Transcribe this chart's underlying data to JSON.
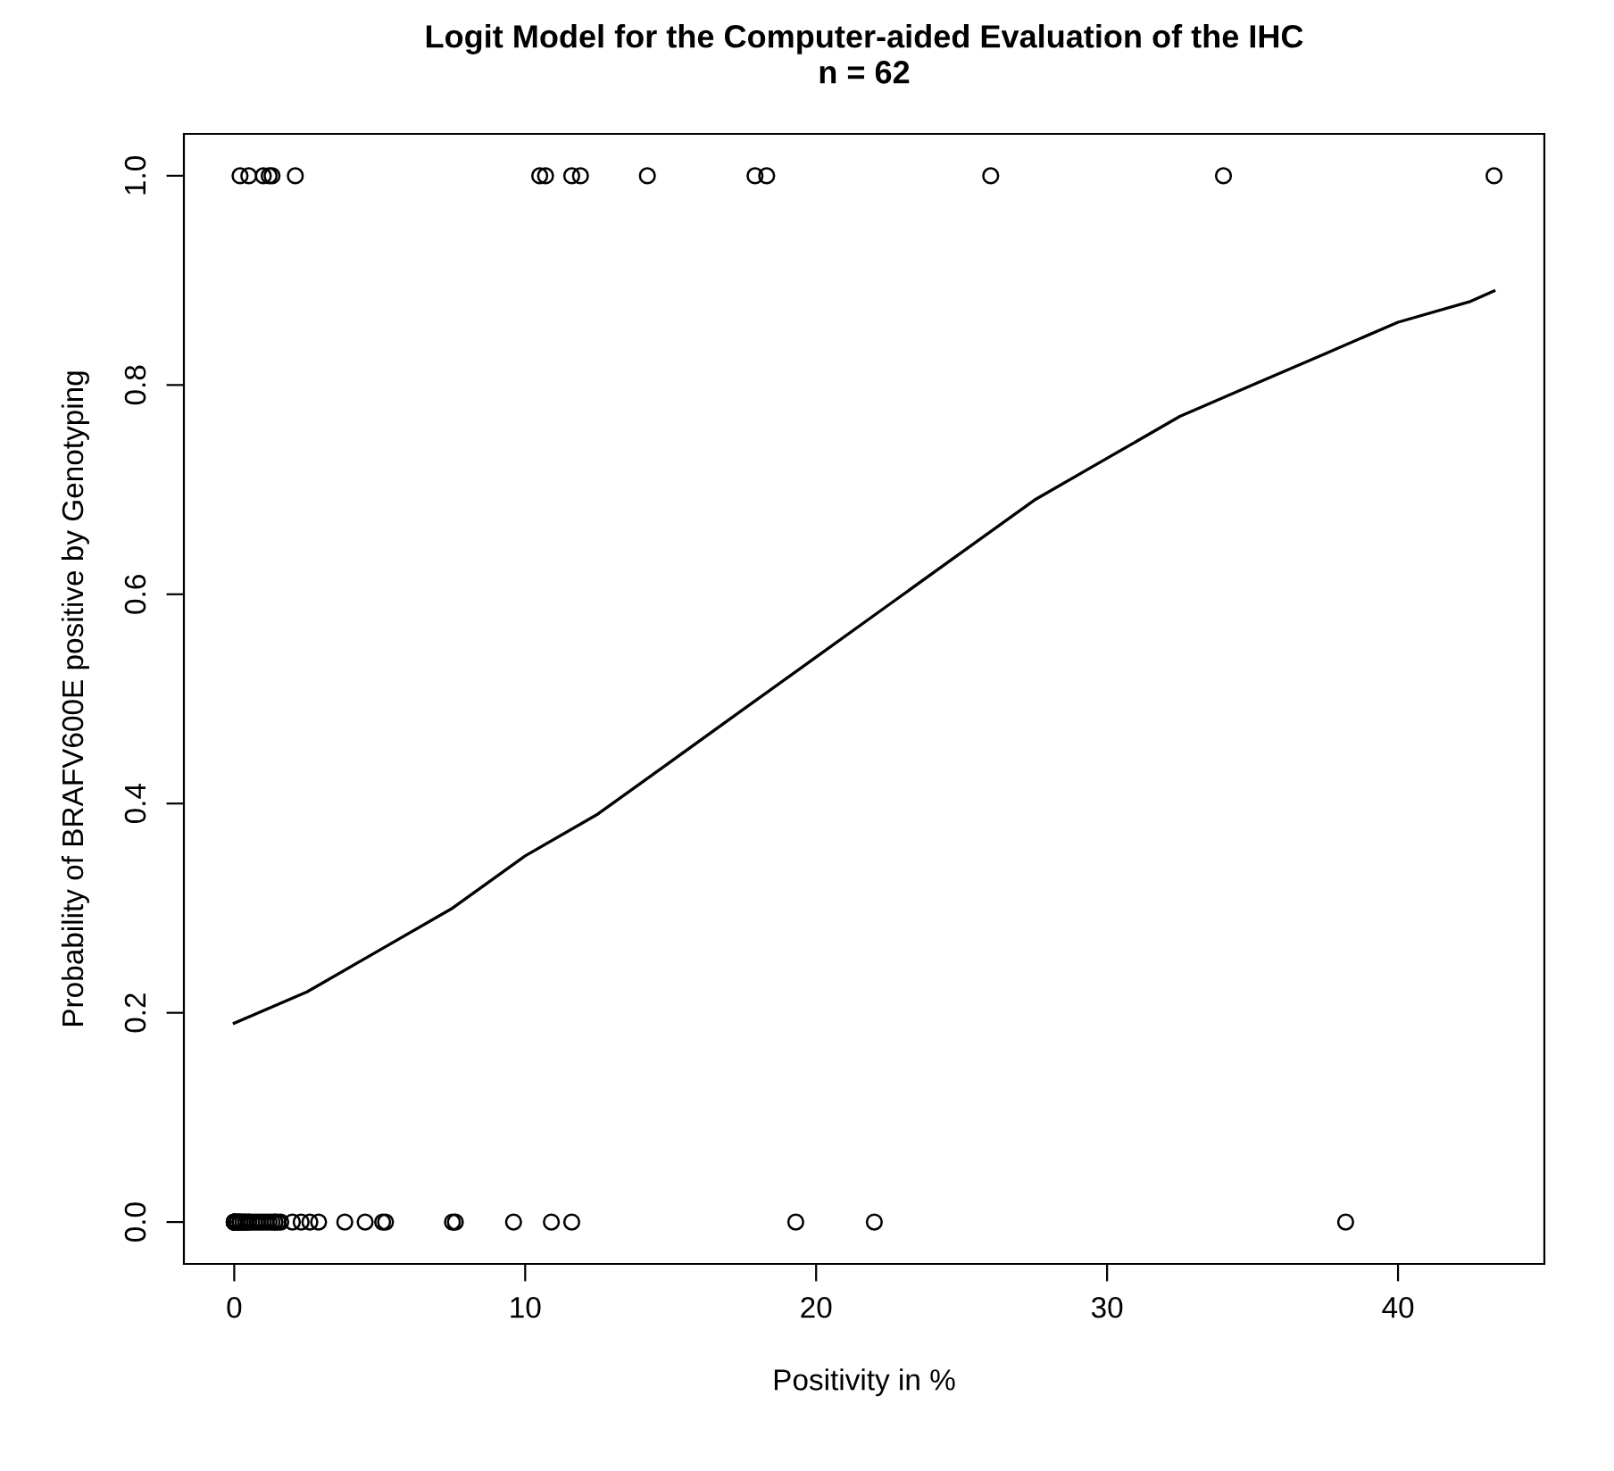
{
  "chart_data": {
    "type": "scatter",
    "title": "Logit Model for the Computer-aided Evaluation of the IHC",
    "subtitle": "n = 62",
    "xlabel": "Positivity in %",
    "ylabel": "Probability of BRAFV600E positive by Genotyping",
    "xlim": [
      -1.73,
      45.03
    ],
    "ylim": [
      -0.04,
      1.04
    ],
    "xticks": [
      0,
      10,
      20,
      30,
      40
    ],
    "yticks": [
      {
        "value": 0,
        "label": "0.0"
      },
      {
        "value": 0.2,
        "label": "0.2"
      },
      {
        "value": 0.4,
        "label": "0.4"
      },
      {
        "value": 0.6,
        "label": "0.6"
      },
      {
        "value": 0.8,
        "label": "0.8"
      },
      {
        "value": 1,
        "label": "1.0"
      }
    ],
    "grid": false,
    "legend": false,
    "series": [
      {
        "color": "#000000",
        "marker": "circle",
        "x": [
          0.2,
          0.5,
          1.0,
          1.2,
          1.3,
          2.1,
          10.5,
          10.7,
          11.6,
          11.9,
          14.2,
          17.9,
          18.3,
          26.0,
          34.0,
          43.3
        ],
        "values": [
          1,
          1,
          1,
          1,
          1,
          1,
          1,
          1,
          1,
          1,
          1,
          1,
          1,
          1,
          1,
          1
        ]
      },
      {
        "color": "#000000",
        "marker": "circle",
        "x": [
          0,
          0,
          0,
          0,
          0,
          0,
          0.1,
          0.1,
          0.1,
          0.2,
          0.2,
          0.2,
          0.3,
          0.3,
          0.4,
          0.4,
          0.5,
          0.5,
          0.6,
          0.7,
          0.8,
          0.9,
          1.0,
          1.1,
          1.2,
          1.3,
          1.4,
          1.4,
          1.5,
          1.6,
          2.0,
          2.3,
          2.6,
          2.9,
          3.8,
          4.5,
          5.1,
          5.2,
          7.5,
          7.6,
          9.6,
          10.9,
          11.6,
          19.3,
          22.0,
          38.2
        ],
        "values": [
          0,
          0,
          0,
          0,
          0,
          0,
          0,
          0,
          0,
          0,
          0,
          0,
          0,
          0,
          0,
          0,
          0,
          0,
          0,
          0,
          0,
          0,
          0,
          0,
          0,
          0,
          0,
          0,
          0,
          0,
          0,
          0,
          0,
          0,
          0,
          0,
          0,
          0,
          0,
          0,
          0,
          0,
          0,
          0,
          0,
          0
        ]
      },
      {
        "type": "line",
        "color": "#000000",
        "marker": "none",
        "line_style": "solid",
        "x": [
          0,
          2.5,
          5,
          7.5,
          10,
          12.5,
          15,
          17.5,
          20,
          22.5,
          25,
          27.5,
          30,
          32.5,
          35,
          37.5,
          40,
          42.5,
          43.3
        ],
        "values": [
          0.19,
          0.22,
          0.26,
          0.3,
          0.35,
          0.39,
          0.44,
          0.49,
          0.54,
          0.59,
          0.64,
          0.69,
          0.73,
          0.77,
          0.8,
          0.83,
          0.86,
          0.88,
          0.89
        ]
      }
    ]
  }
}
